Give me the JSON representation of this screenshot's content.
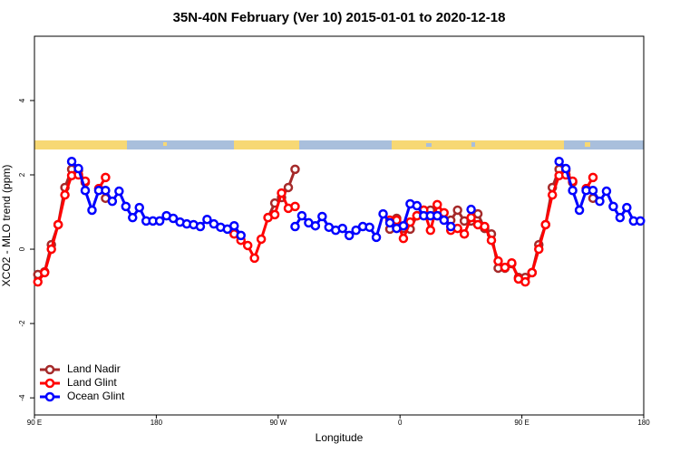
{
  "chart_data": {
    "type": "line",
    "title": "35N-40N February (Ver 10)   2015-01-01 to 2020-12-18",
    "x_label": "Longitude",
    "y_label": "XCO2 - MLO trend (ppm)",
    "xlim": [
      90,
      540
    ],
    "xticks": [
      {
        "value": 90,
        "label": "90 E"
      },
      180,
      {
        "value": 270,
        "label": "90 W"
      },
      {
        "value": 360,
        "label": "0"
      },
      {
        "value": 450,
        "label": "90 E"
      },
      {
        "value": 540,
        "label": "180"
      }
    ],
    "ylim": [
      -4.46,
      5.73
    ],
    "yticks": [
      -4,
      -2,
      0,
      2,
      4
    ],
    "legend": "bottom-left",
    "x": [
      92.5,
      97.5,
      102.5,
      107.5,
      112.5,
      117.5,
      122.5,
      127.5,
      132.5,
      137.5,
      142.5,
      147.5,
      152.5,
      157.5,
      162.5,
      167.5,
      172.5,
      177.5,
      182.5,
      187.5,
      192.5,
      197.5,
      202.5,
      207.5,
      212.5,
      217.5,
      222.5,
      227.5,
      232.5,
      237.5,
      242.5,
      247.5,
      252.5,
      257.5,
      262.5,
      267.5,
      272.5,
      277.5,
      282.5,
      287.5,
      292.5,
      297.5,
      302.5,
      307.5,
      312.5,
      317.5,
      322.5,
      327.5,
      332.5,
      337.5,
      342.5,
      347.5,
      352.5,
      357.5,
      362.5,
      367.5,
      372.5,
      377.5,
      382.5,
      387.5,
      392.5,
      397.5,
      402.5,
      407.5,
      412.5,
      417.5,
      422.5,
      427.5,
      432.5,
      437.5,
      442.5,
      447.5,
      452.5,
      457.5,
      462.5,
      467.5,
      472.5,
      477.5,
      482.5,
      487.5,
      492.5,
      497.5,
      502.5,
      507.5,
      512.5,
      517.5,
      522.5,
      527.5,
      532.5,
      537.5
    ],
    "series": [
      {
        "name": "Land Nadir",
        "color": "#a52a2a",
        "values": [
          -0.68,
          -0.61,
          0.12,
          0.66,
          1.66,
          2.15,
          2.12,
          1.8,
          null,
          null,
          1.37,
          null,
          null,
          null,
          null,
          null,
          null,
          null,
          null,
          null,
          null,
          null,
          null,
          null,
          null,
          null,
          null,
          null,
          null,
          null,
          null,
          null,
          null,
          null,
          0.85,
          1.24,
          1.39,
          1.66,
          2.15,
          null,
          null,
          null,
          null,
          null,
          null,
          null,
          null,
          null,
          null,
          null,
          null,
          null,
          0.54,
          0.83,
          0.56,
          0.54,
          0.9,
          1.05,
          1.05,
          0.9,
          0.8,
          0.78,
          1.05,
          0.76,
          0.76,
          0.95,
          0.56,
          0.41,
          -0.51,
          -0.51,
          -0.39,
          -0.76,
          -0.76,
          -0.63,
          0.12,
          0.66,
          1.66,
          2.15,
          2.12,
          1.8,
          null,
          null,
          1.37,
          null,
          null,
          null,
          null,
          null,
          null,
          null
        ]
      },
      {
        "name": "Land Glint",
        "color": "#ff0000",
        "values": [
          -0.88,
          -0.63,
          0,
          0.66,
          1.46,
          1.98,
          2.0,
          1.83,
          null,
          1.63,
          1.93,
          null,
          null,
          null,
          null,
          null,
          null,
          null,
          null,
          null,
          null,
          null,
          null,
          null,
          null,
          null,
          null,
          null,
          null,
          0.41,
          0.24,
          0.1,
          -0.24,
          0.27,
          0.85,
          0.93,
          1.51,
          1.1,
          1.15,
          null,
          null,
          null,
          null,
          null,
          null,
          null,
          null,
          null,
          null,
          null,
          null,
          null,
          0.78,
          0.78,
          0.29,
          0.73,
          0.9,
          1.05,
          0.51,
          1.2,
          0.98,
          0.51,
          0.56,
          0.41,
          0.85,
          0.66,
          0.61,
          0.24,
          -0.32,
          -0.49,
          -0.37,
          -0.8,
          -0.88,
          -0.63,
          0,
          0.66,
          1.46,
          1.98,
          2.0,
          1.83,
          null,
          1.63,
          1.93,
          null,
          null,
          null,
          null,
          null,
          null,
          null
        ]
      },
      {
        "name": "Ocean Glint",
        "color": "#0000ff",
        "values": [
          null,
          null,
          null,
          null,
          null,
          2.36,
          2.17,
          1.58,
          1.05,
          1.58,
          1.58,
          1.29,
          1.56,
          1.15,
          0.85,
          1.12,
          0.76,
          0.76,
          0.76,
          0.9,
          0.83,
          0.73,
          0.68,
          0.66,
          0.61,
          0.8,
          0.68,
          0.59,
          0.54,
          0.63,
          0.37,
          null,
          null,
          null,
          null,
          null,
          null,
          null,
          0.61,
          0.9,
          0.71,
          0.63,
          0.88,
          0.59,
          0.51,
          0.56,
          0.37,
          0.51,
          0.61,
          0.59,
          0.32,
          0.95,
          0.71,
          0.56,
          0.63,
          1.22,
          1.17,
          0.9,
          0.9,
          0.9,
          0.78,
          0.61,
          null,
          null,
          1.07,
          null,
          null,
          null,
          null,
          null,
          null,
          null,
          null,
          null,
          null,
          null,
          null,
          2.36,
          2.17,
          1.58,
          1.05,
          1.58,
          1.58,
          1.29,
          1.56,
          1.15,
          0.85,
          1.12,
          0.76,
          0.76
        ]
      }
    ]
  }
}
